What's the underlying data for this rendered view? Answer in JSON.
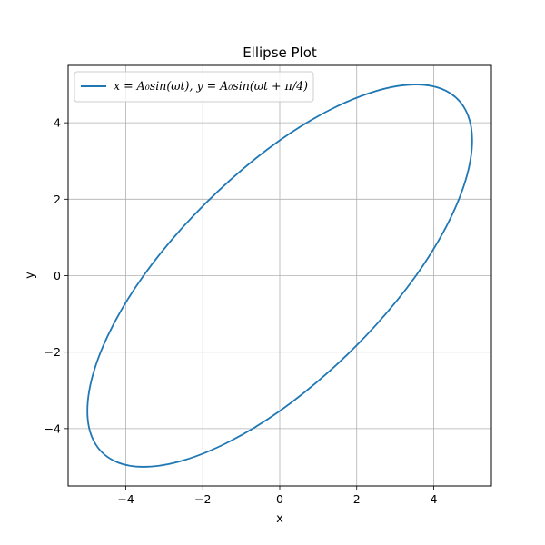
{
  "chart_data": {
    "type": "line",
    "title": "Ellipse Plot",
    "xlabel": "x",
    "ylabel": "y",
    "xlim": [
      -5.5,
      5.5
    ],
    "ylim": [
      -5.5,
      5.5
    ],
    "xticks": [
      -4,
      -2,
      0,
      2,
      4
    ],
    "yticks": [
      -4,
      -2,
      0,
      2,
      4
    ],
    "xtick_labels": [
      "−4",
      "−2",
      "0",
      "2",
      "4"
    ],
    "ytick_labels": [
      "−4",
      "−2",
      "0",
      "2",
      "4"
    ],
    "grid": true,
    "legend_position": "top-left",
    "series": [
      {
        "name": "x = A₀sin(ωt), y = A₀sin(ωt + π/4)",
        "color": "#1f77b4",
        "x": [
          0.0,
          1.29,
          2.5,
          3.54,
          4.33,
          4.83,
          5.0,
          4.83,
          4.33,
          3.54,
          2.5,
          1.29,
          0.0,
          -1.29,
          -2.5,
          -3.54,
          -4.33,
          -4.83,
          -5.0,
          -4.83,
          -4.33,
          -3.54,
          -2.5,
          -1.29,
          0.0
        ],
        "y": [
          3.54,
          4.33,
          4.83,
          5.0,
          4.83,
          4.33,
          3.54,
          2.5,
          1.29,
          0.0,
          -1.29,
          -2.5,
          -3.54,
          -4.33,
          -4.83,
          -5.0,
          -4.83,
          -4.33,
          -3.54,
          -2.5,
          -1.29,
          0.0,
          1.29,
          2.5,
          3.54
        ]
      }
    ]
  }
}
